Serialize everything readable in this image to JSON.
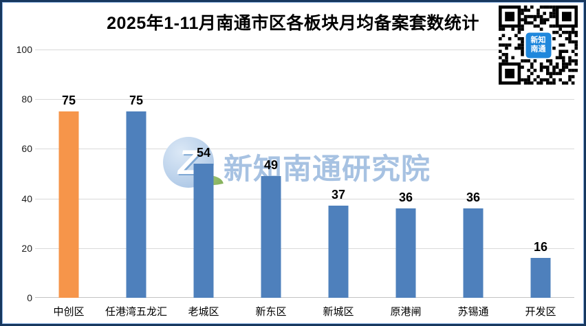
{
  "title": "2025年1-11月南通市区各板块月均备案套数统计",
  "chart_data": {
    "type": "bar",
    "title": "2025年1-11月南通市区各板块月均备案套数统计",
    "categories": [
      "中创区",
      "任港湾五龙汇",
      "老城区",
      "新东区",
      "新城区",
      "原港闸",
      "苏锡通",
      "开发区"
    ],
    "values": [
      75,
      75,
      54,
      49,
      37,
      36,
      36,
      16
    ],
    "bar_colors": [
      "#F6954A",
      "#4E80BC",
      "#4E80BC",
      "#4E80BC",
      "#4E80BC",
      "#4E80BC",
      "#4E80BC",
      "#4E80BC"
    ],
    "highlight_index": 0,
    "xlabel": "",
    "ylabel": "",
    "ylim": [
      0,
      100
    ],
    "yticks": [
      0,
      20,
      40,
      60,
      80,
      100
    ],
    "grid": true,
    "legend": false,
    "data_labels": true
  },
  "watermark": {
    "logo_letter": "Z",
    "text": "新知南通研究院",
    "color": "#A7C2E2"
  },
  "qr_code": {
    "center_text_line1": "新知",
    "center_text_line2": "南通"
  },
  "colors": {
    "highlight_bar": "#F6954A",
    "default_bar": "#4E80BC",
    "gridline": "#D9D9D9",
    "frame_border": "#17375E",
    "qr_center": "#1F87DC",
    "watermark_text": "#A7C2E2"
  }
}
